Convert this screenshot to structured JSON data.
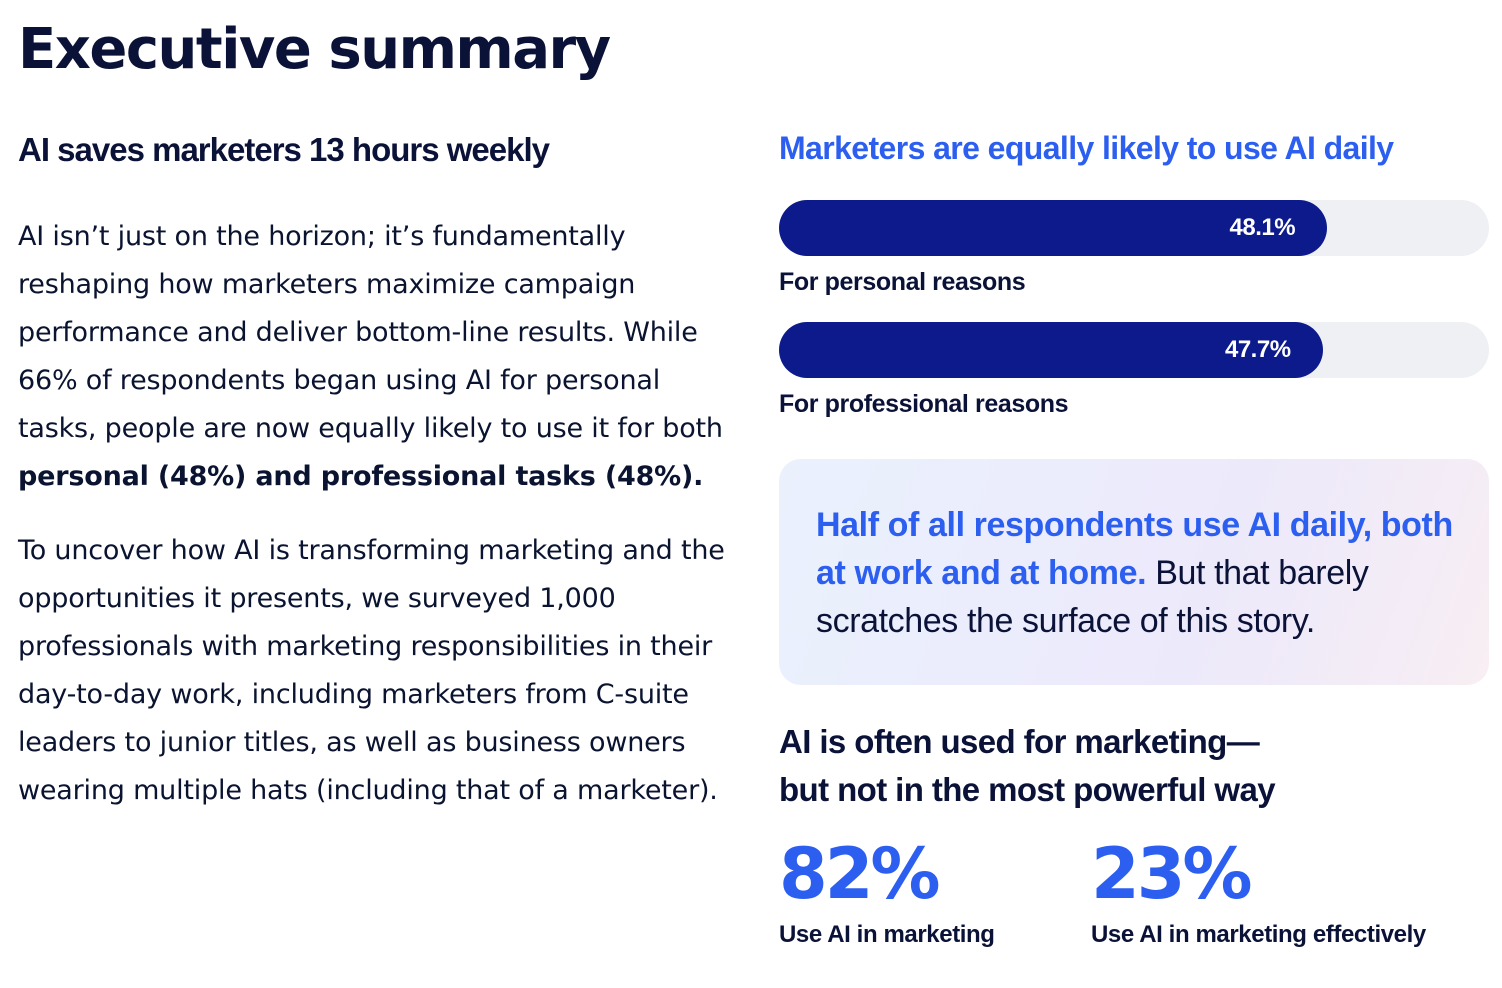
{
  "page": {
    "title": "Executive summary"
  },
  "left": {
    "subtitle": "AI saves marketers 13 hours weekly",
    "paragraph1": {
      "text": "AI isn’t just on the horizon; it’s fundamentally reshaping how marketers maximize campaign performance and deliver bottom-line results. While 66% of respondents began using AI for personal tasks, people are now equally likely to use it for both ",
      "bold": "personal (48%) and professional tasks (48%)."
    },
    "paragraph2": "To uncover how AI is transforming marketing and the opportunities it presents, we surveyed 1,000 professionals with marketing responsibilities in their day-to-day work, including marketers from C-suite leaders to junior titles, as well as business owners wearing multiple hats (including that of a marketer)."
  },
  "chart_data": {
    "type": "bar",
    "orientation": "horizontal",
    "title": "Marketers are equally likely to use AI daily",
    "categories": [
      "For personal reasons",
      "For professional reasons"
    ],
    "values": [
      48.1,
      47.7
    ],
    "value_labels": [
      "48.1%",
      "47.7%"
    ],
    "xlim": [
      0,
      100
    ],
    "unit": "%",
    "bar_color": "#0c1a8c",
    "track_color": "#eef0f3",
    "grid": false
  },
  "callout": {
    "highlight": "Half of all respondents use AI daily, both at work and at home.",
    "rest": " But that barely scratches the surface of this story."
  },
  "stats": {
    "heading_line1": "AI is often used for marketing—",
    "heading_line2": "but not in the most powerful way",
    "items": [
      {
        "value": "82%",
        "label": "Use AI in marketing"
      },
      {
        "value": "23%",
        "label": "Use AI in marketing effectively"
      }
    ]
  },
  "colors": {
    "accent_blue": "#2c5ff0",
    "navy": "#0b1238",
    "bar_navy": "#0c1a8c"
  }
}
